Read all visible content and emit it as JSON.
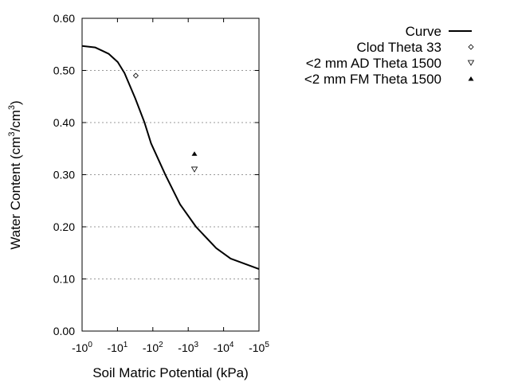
{
  "chart_data": {
    "type": "line",
    "title": "",
    "xlabel": "Soil Matric Potential (kPa)",
    "ylabel": "Water Content (cm³/cm³)",
    "ylabel_parts": {
      "base": "Water Content (cm",
      "exp1": "3",
      "mid": "/cm",
      "exp2": "3",
      "end": ")"
    },
    "x_scale": "log",
    "xlim": [
      1,
      100000
    ],
    "ylim": [
      0,
      0.6
    ],
    "x_ticks": [
      {
        "value": 1,
        "base": "-10",
        "exp": "0"
      },
      {
        "value": 10,
        "base": "-10",
        "exp": "1"
      },
      {
        "value": 100,
        "base": "-10",
        "exp": "2"
      },
      {
        "value": 1000,
        "base": "-10",
        "exp": "3"
      },
      {
        "value": 10000,
        "base": "-10",
        "exp": "4"
      },
      {
        "value": 100000,
        "base": "-10",
        "exp": "5"
      }
    ],
    "y_ticks": [
      {
        "value": 0,
        "label": "0.00"
      },
      {
        "value": 0.1,
        "label": "0.10"
      },
      {
        "value": 0.2,
        "label": "0.20"
      },
      {
        "value": 0.3,
        "label": "0.30"
      },
      {
        "value": 0.4,
        "label": "0.40"
      },
      {
        "value": 0.5,
        "label": "0.50"
      },
      {
        "value": 0.6,
        "label": "0.60"
      }
    ],
    "grid": "horizontal dotted",
    "legend_position": "right",
    "series": [
      {
        "name": "Curve",
        "kind": "line",
        "color": "#000000",
        "x": [
          1,
          2.37,
          5.62,
          10.2,
          15.8,
          31.6,
          57.5,
          89.1,
          229,
          589,
          1660,
          6170,
          15800,
          100000
        ],
        "y": [
          0.547,
          0.544,
          0.532,
          0.516,
          0.495,
          0.447,
          0.401,
          0.36,
          0.299,
          0.243,
          0.2,
          0.159,
          0.139,
          0.119
        ]
      },
      {
        "name": "Clod Theta 33",
        "kind": "marker",
        "marker": "diamond-open",
        "x": [
          33
        ],
        "y": [
          0.49
        ]
      },
      {
        "name": "<2 mm AD Theta 1500",
        "kind": "marker",
        "marker": "triangle-down-open",
        "x": [
          1500
        ],
        "y": [
          0.31
        ]
      },
      {
        "name": "<2 mm FM Theta 1500",
        "kind": "marker",
        "marker": "triangle-up-filled",
        "x": [
          1500
        ],
        "y": [
          0.34
        ]
      }
    ]
  }
}
